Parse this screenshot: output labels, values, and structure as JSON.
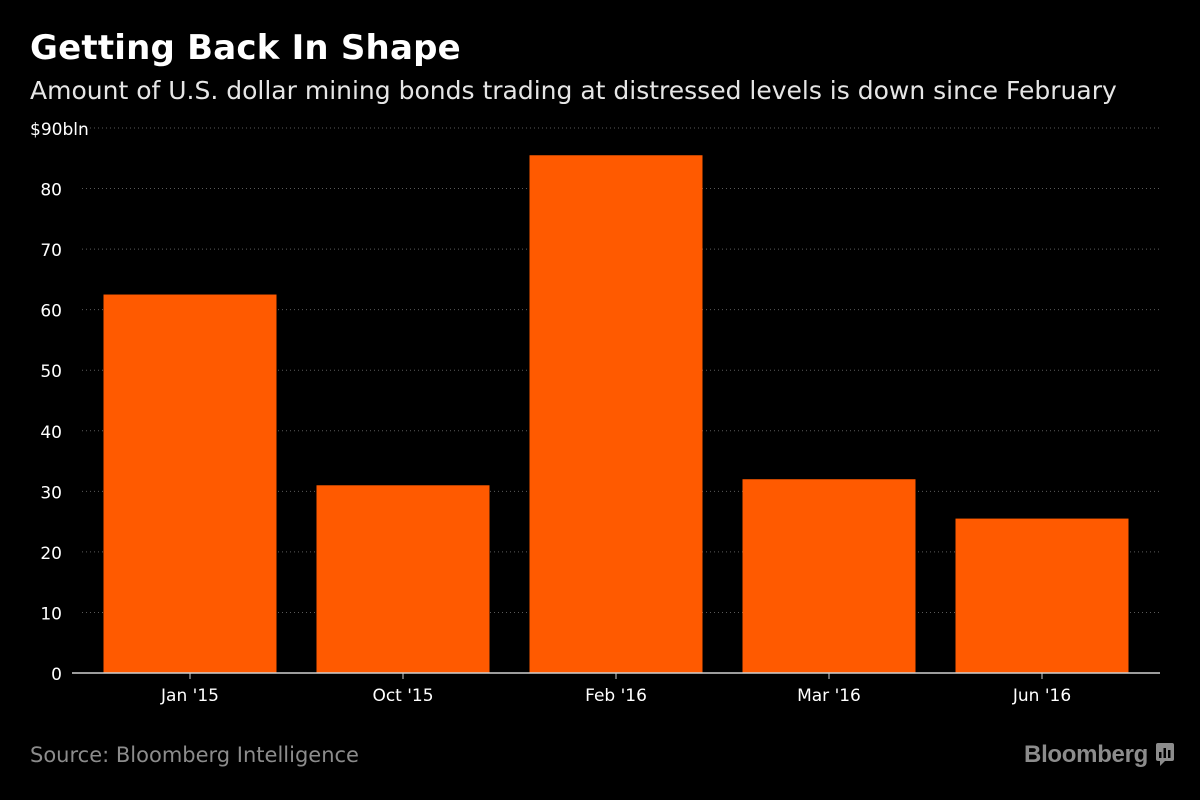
{
  "header": {
    "title": "Getting Back In Shape",
    "subtitle": "Amount of U.S. dollar mining bonds trading at distressed levels is down since February"
  },
  "footer": {
    "source": "Source: Bloomberg Intelligence",
    "brand": "Bloomberg",
    "brand_icon": "bloomberg-terminal-icon"
  },
  "colors": {
    "background": "#000000",
    "bar": "#ff5a00",
    "grid": "#5a5a5a",
    "axis": "#cfcfcf",
    "text": "#ffffff",
    "muted": "#8c8c8c"
  },
  "chart_data": {
    "type": "bar",
    "title": "Getting Back In Shape",
    "subtitle": "Amount of U.S. dollar mining bonds trading at distressed levels is down since February",
    "categories": [
      "Jan '15",
      "Oct '15",
      "Feb '16",
      "Mar '16",
      "Jun '16"
    ],
    "values": [
      62.5,
      31,
      85.5,
      32,
      25.5
    ],
    "ylim": [
      0,
      90
    ],
    "yticks": [
      0,
      10,
      20,
      30,
      40,
      50,
      60,
      70,
      80,
      90
    ],
    "ytick_labels": [
      "0",
      "10",
      "20",
      "30",
      "40",
      "50",
      "60",
      "70",
      "80",
      "$90bln"
    ],
    "xlabel": "",
    "ylabel": "",
    "grid": true,
    "legend": "none"
  }
}
